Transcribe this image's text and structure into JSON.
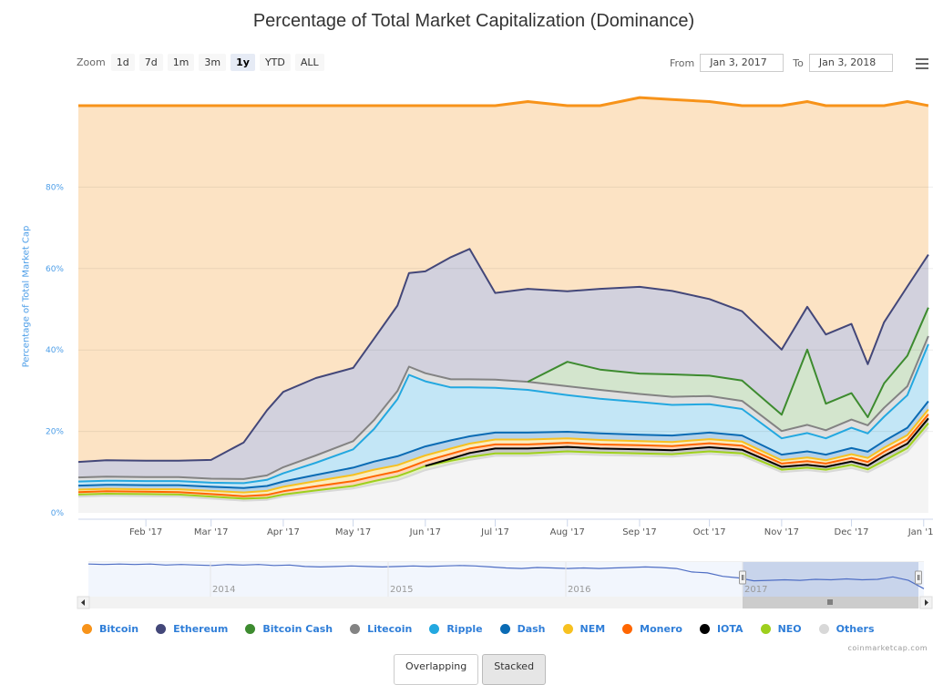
{
  "header": {
    "title": "Percentage of Total Market Capitalization (Dominance)"
  },
  "zoom": {
    "label": "Zoom",
    "buttons": [
      "1d",
      "7d",
      "1m",
      "3m",
      "1y",
      "YTD",
      "ALL"
    ],
    "active": "1y"
  },
  "range": {
    "from_label": "From",
    "from_value": "Jan 3, 2017",
    "to_label": "To",
    "to_value": "Jan 3, 2018"
  },
  "menu_icon": "hamburger-menu-icon",
  "navigator": {
    "year_labels": [
      "2014",
      "2015",
      "2016",
      "2017"
    ],
    "scroll_left_icon": "arrow-left-icon",
    "scroll_right_icon": "arrow-right-icon",
    "grip_icon": "grip-icon"
  },
  "legend": [
    {
      "name": "Bitcoin",
      "color": "#f7931a"
    },
    {
      "name": "Ethereum",
      "color": "#434779"
    },
    {
      "name": "Bitcoin Cash",
      "color": "#3d8b2f"
    },
    {
      "name": "Litecoin",
      "color": "#838383"
    },
    {
      "name": "Ripple",
      "color": "#23a8e0"
    },
    {
      "name": "Dash",
      "color": "#0a6bb4"
    },
    {
      "name": "NEM",
      "color": "#f7c120"
    },
    {
      "name": "Monero",
      "color": "#ff6600"
    },
    {
      "name": "IOTA",
      "color": "#000000"
    },
    {
      "name": "NEO",
      "color": "#9ecf1d"
    },
    {
      "name": "Others",
      "color": "#d8d8d8"
    }
  ],
  "credits": "coinmarketcap.com",
  "mode_buttons": {
    "overlapping": "Overlapping",
    "stacked": "Stacked",
    "active": "Stacked"
  },
  "chart_data": {
    "type": "area",
    "stacking": "percent",
    "title": "Percentage of Total Market Capitalization (Dominance)",
    "xlabel": "",
    "ylabel": "Percentage of Total Market Cap",
    "ylim": [
      0,
      100
    ],
    "y_ticks": [
      "0%",
      "20%",
      "40%",
      "60%",
      "80%"
    ],
    "x_ticks": [
      "Feb '17",
      "Mar '17",
      "Apr '17",
      "May '17",
      "Jun '17",
      "Jul '17",
      "Aug '17",
      "Sep '17",
      "Oct '17",
      "Nov '17",
      "Dec '17",
      "Jan '18"
    ],
    "x_range": [
      "2017-01-03",
      "2018-01-05"
    ],
    "grid": true,
    "legend_position": "bottom",
    "x": [
      "2017-01-03",
      "2017-01-15",
      "2017-02-01",
      "2017-02-15",
      "2017-03-01",
      "2017-03-15",
      "2017-03-25",
      "2017-04-01",
      "2017-04-15",
      "2017-05-01",
      "2017-05-10",
      "2017-05-20",
      "2017-05-25",
      "2017-06-01",
      "2017-06-12",
      "2017-06-20",
      "2017-07-01",
      "2017-07-15",
      "2017-08-01",
      "2017-08-15",
      "2017-09-01",
      "2017-09-15",
      "2017-10-01",
      "2017-10-15",
      "2017-11-01",
      "2017-11-12",
      "2017-11-20",
      "2017-12-01",
      "2017-12-08",
      "2017-12-15",
      "2017-12-25",
      "2018-01-03"
    ],
    "series": [
      {
        "name": "Others",
        "values": [
          4.0,
          4.2,
          4.1,
          4.0,
          3.5,
          3.0,
          3.2,
          4.0,
          5.0,
          6.0,
          7.0,
          8.0,
          9.0,
          10.5,
          12.0,
          13.0,
          14.0,
          14.0,
          14.5,
          14.2,
          14.0,
          13.8,
          14.5,
          14.0,
          10.0,
          10.5,
          10.0,
          11.0,
          10.0,
          12.0,
          15.0,
          21.0
        ]
      },
      {
        "name": "NEO",
        "values": [
          0.5,
          0.5,
          0.5,
          0.5,
          0.5,
          0.5,
          0.5,
          0.5,
          0.5,
          0.6,
          0.8,
          1.0,
          1.0,
          1.0,
          0.8,
          0.7,
          0.6,
          0.6,
          0.6,
          0.6,
          0.6,
          0.6,
          0.6,
          0.6,
          0.6,
          0.6,
          0.6,
          0.8,
          0.7,
          0.8,
          0.9,
          1.0
        ]
      },
      {
        "name": "IOTA",
        "values": [
          0,
          0,
          0,
          0,
          0,
          0,
          0,
          0,
          0,
          0,
          0,
          0,
          0,
          0,
          0.5,
          1.0,
          1.2,
          1.2,
          1.1,
          1.0,
          1.0,
          1.0,
          1.0,
          0.9,
          0.7,
          0.7,
          0.7,
          0.8,
          0.9,
          1.2,
          1.1,
          1.2
        ]
      },
      {
        "name": "Monero",
        "values": [
          0.6,
          0.6,
          0.6,
          0.6,
          0.6,
          0.6,
          0.7,
          0.8,
          1.0,
          1.2,
          1.2,
          1.2,
          1.2,
          1.2,
          1.2,
          1.1,
          1.0,
          1.0,
          1.0,
          1.0,
          1.0,
          1.0,
          1.0,
          1.0,
          0.8,
          0.9,
          0.8,
          0.9,
          0.9,
          1.0,
          1.0,
          1.0
        ]
      },
      {
        "name": "NEM",
        "values": [
          0.6,
          0.6,
          0.6,
          0.7,
          0.8,
          0.9,
          1.0,
          1.1,
          1.3,
          1.5,
          1.6,
          1.5,
          1.5,
          1.4,
          1.3,
          1.2,
          1.2,
          1.2,
          1.1,
          1.1,
          1.0,
          1.0,
          1.0,
          1.0,
          0.8,
          0.9,
          0.8,
          0.9,
          1.0,
          1.0,
          1.1,
          1.2
        ]
      },
      {
        "name": "Dash",
        "values": [
          1.0,
          1.0,
          1.0,
          1.0,
          1.0,
          1.1,
          1.2,
          1.3,
          1.5,
          1.8,
          2.0,
          2.2,
          2.2,
          2.2,
          2.0,
          1.8,
          1.7,
          1.7,
          1.6,
          1.6,
          1.6,
          1.6,
          1.6,
          1.5,
          1.4,
          1.5,
          1.4,
          1.5,
          1.5,
          1.6,
          1.8,
          2.0
        ]
      },
      {
        "name": "Ripple",
        "values": [
          1.0,
          1.0,
          1.0,
          1.0,
          1.0,
          1.2,
          1.5,
          2.0,
          3.0,
          4.5,
          8.0,
          14.0,
          19.0,
          16.0,
          13.0,
          12.0,
          11.0,
          10.5,
          9.0,
          8.5,
          8.0,
          7.5,
          7.0,
          6.5,
          4.0,
          4.5,
          4.0,
          5.0,
          4.5,
          6.0,
          8.0,
          14.0
        ]
      },
      {
        "name": "Litecoin",
        "values": [
          1.0,
          1.0,
          1.0,
          1.0,
          1.0,
          1.0,
          1.1,
          1.5,
          1.8,
          2.0,
          2.2,
          2.0,
          2.0,
          2.0,
          2.0,
          2.0,
          2.0,
          2.0,
          2.2,
          2.2,
          2.0,
          2.0,
          2.0,
          2.0,
          1.8,
          2.0,
          2.0,
          2.0,
          2.0,
          2.2,
          2.2,
          2.0
        ]
      },
      {
        "name": "Bitcoin Cash",
        "values": [
          0,
          0,
          0,
          0,
          0,
          0,
          0,
          0,
          0,
          0,
          0,
          0,
          0,
          0,
          0,
          0,
          0,
          0,
          6.0,
          5.0,
          5.0,
          5.5,
          5.0,
          5.0,
          4.0,
          18.5,
          6.5,
          6.5,
          2.0,
          6.0,
          7.5,
          7.0
        ]
      },
      {
        "name": "Ethereum",
        "values": [
          3.8,
          4.0,
          4.0,
          4.0,
          4.6,
          9.0,
          16.0,
          18.5,
          19.0,
          18.0,
          20.0,
          21.0,
          23.0,
          25.0,
          30.0,
          32.0,
          21.3,
          22.8,
          17.3,
          19.8,
          21.3,
          20.5,
          18.8,
          17.0,
          16.0,
          10.5,
          17.0,
          17.0,
          13.0,
          15.0,
          17.0,
          13.0
        ]
      },
      {
        "name": "Bitcoin",
        "values": [
          87.5,
          87.1,
          87.2,
          87.2,
          87.0,
          82.7,
          74.8,
          70.3,
          66.9,
          64.4,
          57.2,
          49.1,
          41.1,
          40.7,
          37.2,
          35.2,
          46.0,
          46.0,
          45.6,
          45.0,
          46.5,
          47.0,
          48.5,
          50.5,
          59.9,
          50.4,
          56.2,
          53.6,
          63.5,
          53.2,
          45.4,
          36.6
        ]
      }
    ]
  }
}
